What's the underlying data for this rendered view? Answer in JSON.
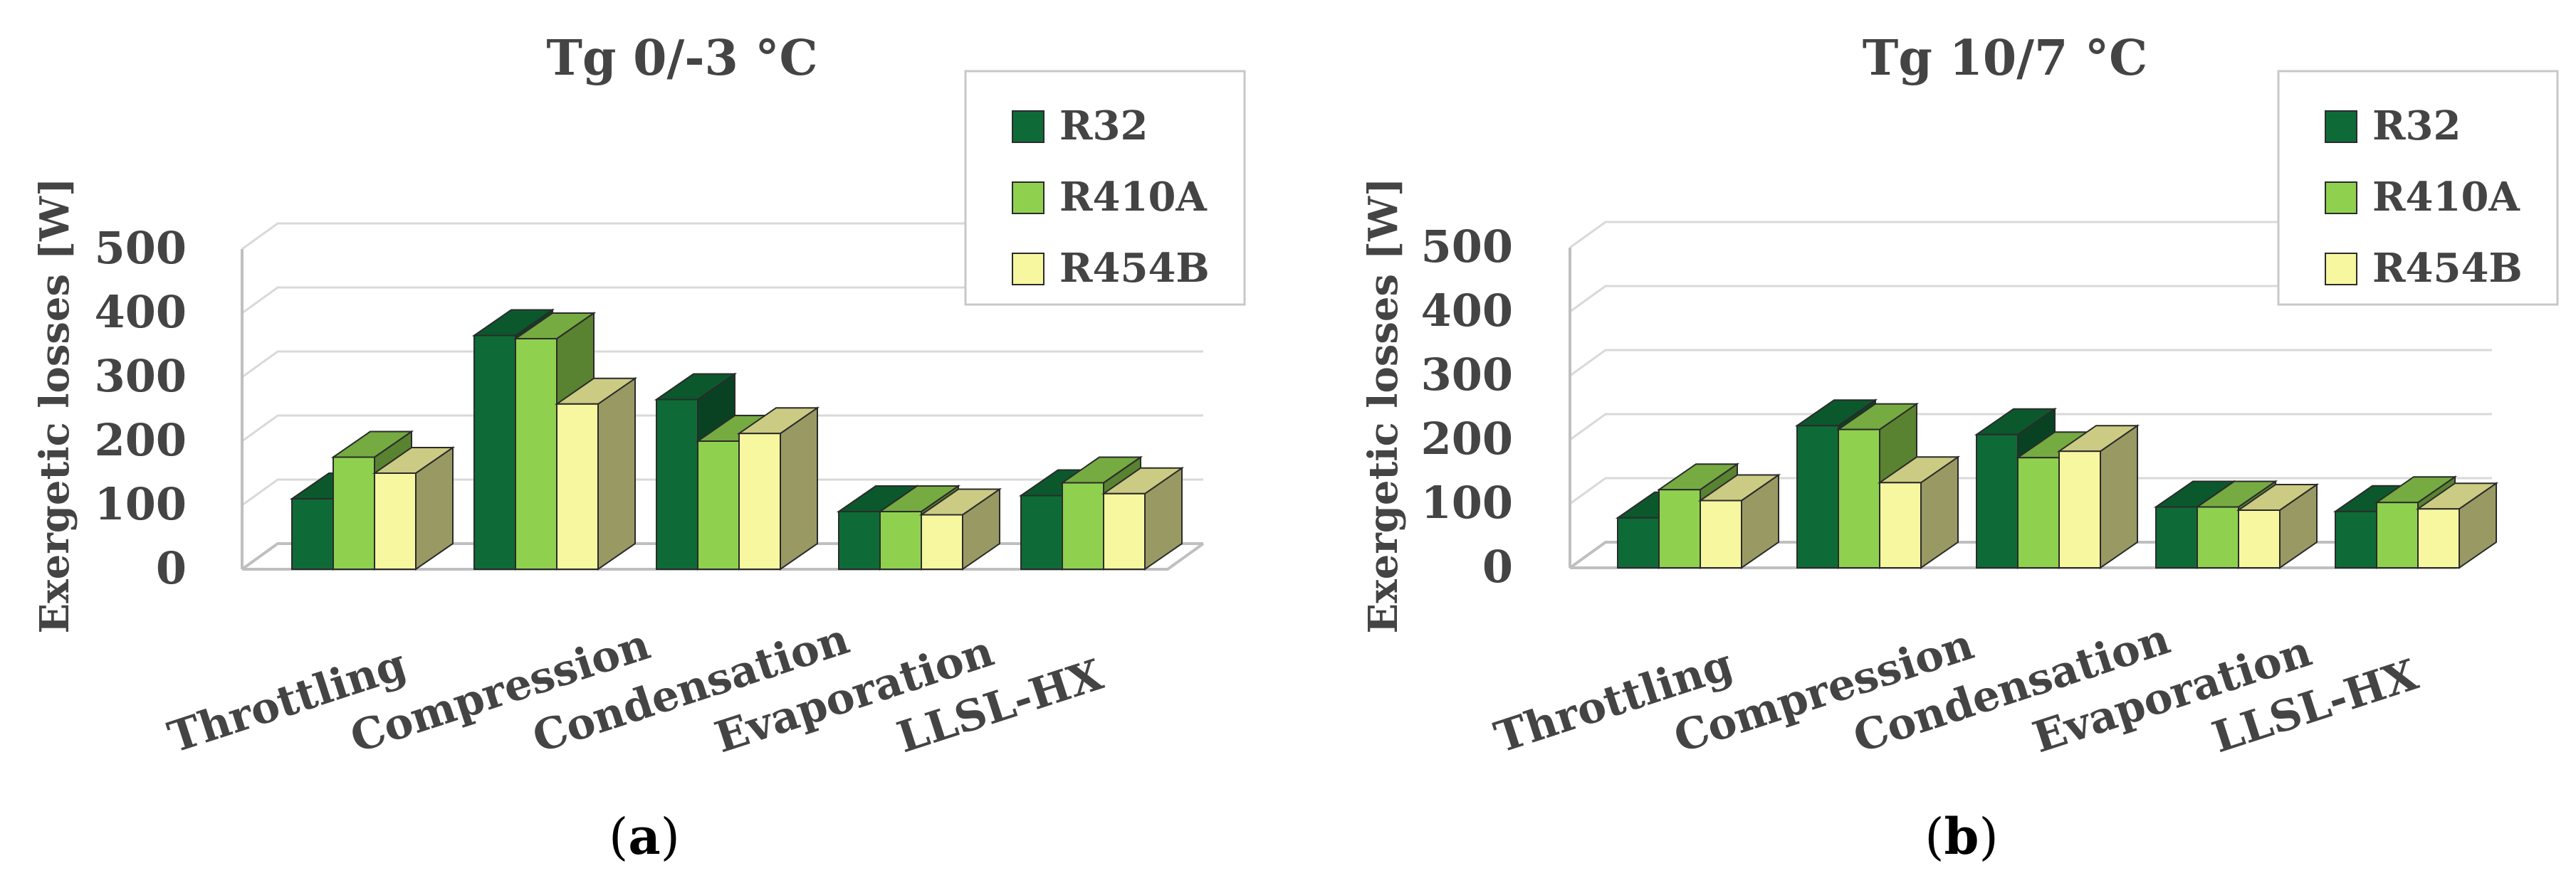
{
  "captions": [
    "a",
    "b"
  ],
  "chart_data": [
    {
      "type": "bar",
      "title": "Tg 0/-3 °C",
      "caption": "a",
      "ylabel": "Exergetic losses [W]",
      "xlabel": "",
      "ylim": [
        0,
        500
      ],
      "yticks": [
        "0",
        "100",
        "200",
        "300",
        "400",
        "500"
      ],
      "categories": [
        "Throttling",
        "Compression",
        "Condensation",
        "Evaporation",
        "LLSL-HX"
      ],
      "legend_position": "top-right",
      "series": [
        {
          "name": "R32",
          "color": "#0e6b37",
          "values": [
            110,
            365,
            265,
            90,
            115
          ]
        },
        {
          "name": "R410A",
          "color": "#8fd14f",
          "values": [
            175,
            360,
            200,
            90,
            135
          ]
        },
        {
          "name": "R454B",
          "color": "#f7f7a0",
          "values": [
            150,
            258,
            212,
            85,
            118
          ]
        }
      ]
    },
    {
      "type": "bar",
      "title": "Tg 10/7 °C",
      "caption": "b",
      "ylabel": "Exergetic losses [W]",
      "xlabel": "",
      "ylim": [
        0,
        500
      ],
      "yticks": [
        "0",
        "100",
        "200",
        "300",
        "400",
        "500"
      ],
      "categories": [
        "Throttling",
        "Compression",
        "Condensation",
        "Evaporation",
        "LLSL-HX"
      ],
      "legend_position": "top-right",
      "series": [
        {
          "name": "R32",
          "color": "#0e6b37",
          "values": [
            78,
            222,
            208,
            95,
            88
          ]
        },
        {
          "name": "R410A",
          "color": "#8fd14f",
          "values": [
            122,
            216,
            172,
            95,
            102
          ]
        },
        {
          "name": "R454B",
          "color": "#f7f7a0",
          "values": [
            105,
            133,
            182,
            90,
            92
          ]
        }
      ]
    }
  ]
}
